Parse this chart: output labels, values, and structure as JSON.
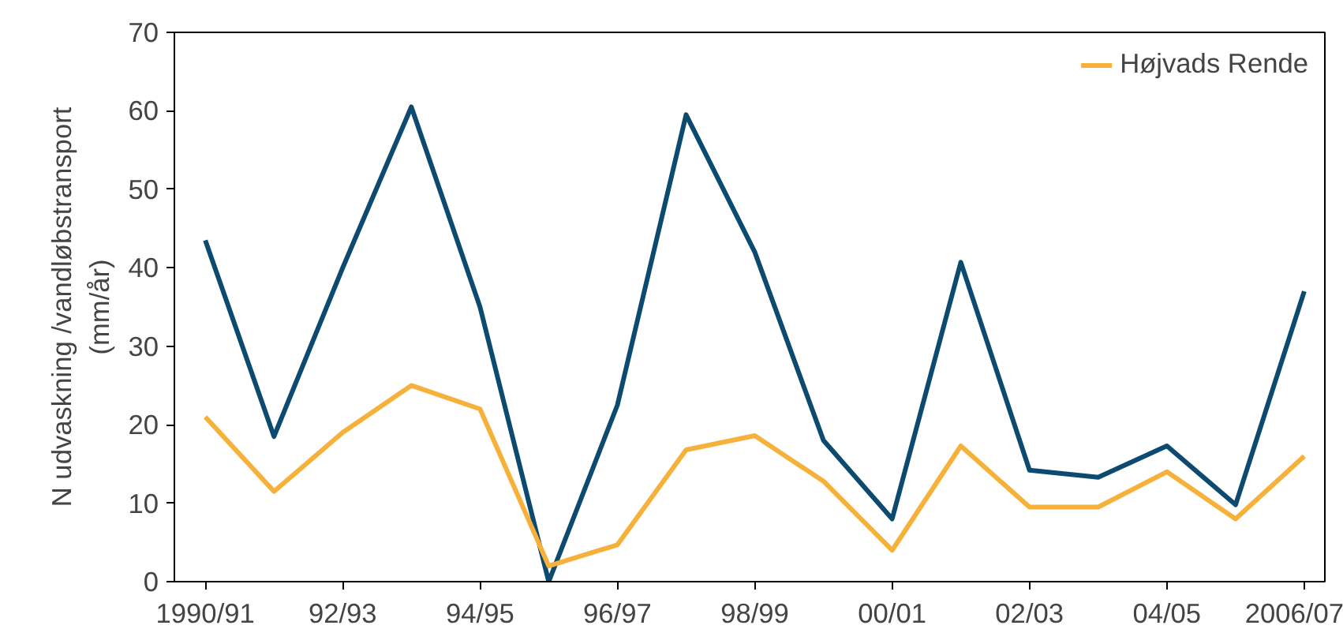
{
  "chart_data": {
    "type": "line",
    "ylabel": "N udvaskning /vandløbstransport\n(mm/år)",
    "categories": [
      "1990/91",
      null,
      "92/93",
      null,
      "94/95",
      null,
      "96/97",
      null,
      "98/99",
      null,
      "00/01",
      null,
      "02/03",
      null,
      "04/05",
      null,
      "2006/07"
    ],
    "series": [
      {
        "color": "#0d4a70",
        "values": [
          43.5,
          18.5,
          40,
          60.5,
          35,
          0,
          22.5,
          59.5,
          42,
          18,
          8,
          40.7,
          14.2,
          13.3,
          17.3,
          9.8,
          37
        ]
      },
      {
        "name": "Højvads Rende",
        "color": "#f6b13a",
        "values": [
          21,
          11.5,
          19,
          25,
          22,
          2,
          4.7,
          16.8,
          18.6,
          12.8,
          4,
          17.3,
          9.5,
          9.5,
          14,
          8,
          16
        ]
      }
    ],
    "ylim": [
      0,
      70
    ],
    "yticks": [
      0,
      10,
      20,
      30,
      40,
      50,
      60,
      70
    ],
    "grid": false,
    "legend": "top right",
    "marker": "none",
    "line_style": "solid"
  }
}
